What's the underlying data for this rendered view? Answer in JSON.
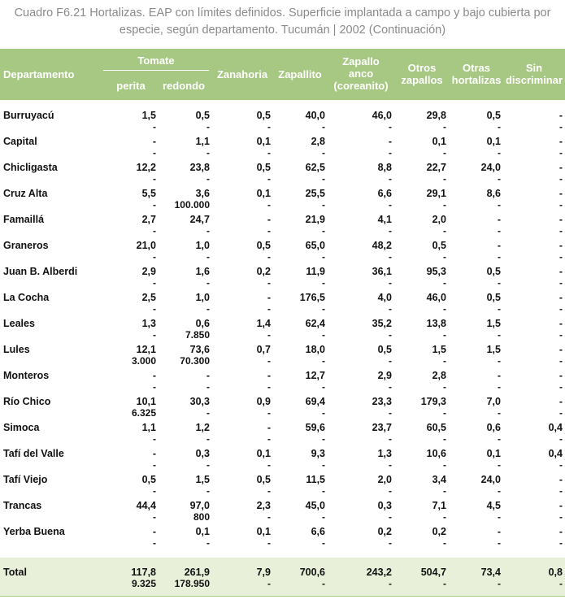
{
  "title": "Cuadro F6.21 Hortalizas. EAP con límites definidos. Superficie implantada a campo y bajo cubierta por especie, según departamento. Tucumán | 2002 (Continuación)",
  "headers": {
    "departamento": "Departamento",
    "tomate": "Tomate",
    "perita": "perita",
    "redondo": "redondo",
    "zanahoria": "Zanahoria",
    "zapallito": "Zapallito",
    "zapallo": "Zapallo anco (coreanito)",
    "otros_zapallos": "Otros zapallos",
    "otras_hortalizas": "Otras hortalizas",
    "sin_discriminar": "Sin discriminar"
  },
  "rows": [
    {
      "dept": "Burruyacú",
      "v": [
        "1,5",
        "0,5",
        "0,5",
        "40,0",
        "46,0",
        "29,8",
        "0,5",
        "-"
      ],
      "s": [
        "-",
        "-",
        "-",
        "-",
        "-",
        "-",
        "-",
        "-"
      ]
    },
    {
      "dept": "Capital",
      "v": [
        "-",
        "1,1",
        "0,1",
        "2,8",
        "-",
        "0,1",
        "0,1",
        "-"
      ],
      "s": [
        "-",
        "-",
        "-",
        "-",
        "-",
        "-",
        "-",
        "-"
      ]
    },
    {
      "dept": "Chicligasta",
      "v": [
        "12,2",
        "23,8",
        "0,5",
        "62,5",
        "8,8",
        "22,7",
        "24,0",
        "-"
      ],
      "s": [
        "-",
        "-",
        "-",
        "-",
        "-",
        "-",
        "-",
        "-"
      ]
    },
    {
      "dept": "Cruz Alta",
      "v": [
        "5,5",
        "3,6",
        "0,1",
        "25,5",
        "6,6",
        "29,1",
        "8,6",
        "-"
      ],
      "s": [
        "-",
        "100.000",
        "-",
        "-",
        "-",
        "-",
        "-",
        "-"
      ]
    },
    {
      "dept": "Famaillá",
      "v": [
        "2,7",
        "24,7",
        "-",
        "21,9",
        "4,1",
        "2,0",
        "-",
        "-"
      ],
      "s": [
        "-",
        "-",
        "-",
        "-",
        "-",
        "-",
        "-",
        "-"
      ]
    },
    {
      "dept": "Graneros",
      "v": [
        "21,0",
        "1,0",
        "0,5",
        "65,0",
        "48,2",
        "0,5",
        "-",
        "-"
      ],
      "s": [
        "-",
        "-",
        "-",
        "-",
        "-",
        "-",
        "-",
        "-"
      ]
    },
    {
      "dept": "Juan B. Alberdi",
      "v": [
        "2,9",
        "1,6",
        "0,2",
        "11,9",
        "36,1",
        "95,3",
        "0,5",
        "-"
      ],
      "s": [
        "-",
        "-",
        "-",
        "-",
        "-",
        "-",
        "-",
        "-"
      ]
    },
    {
      "dept": "La Cocha",
      "v": [
        "2,5",
        "1,0",
        "-",
        "176,5",
        "4,0",
        "46,0",
        "0,5",
        "-"
      ],
      "s": [
        "-",
        "-",
        "-",
        "-",
        "-",
        "-",
        "-",
        "-"
      ]
    },
    {
      "dept": "Leales",
      "v": [
        "1,3",
        "0,6",
        "1,4",
        "62,4",
        "35,2",
        "13,8",
        "1,5",
        "-"
      ],
      "s": [
        "-",
        "7.850",
        "-",
        "-",
        "-",
        "-",
        "-",
        "-"
      ]
    },
    {
      "dept": "Lules",
      "v": [
        "12,1",
        "73,6",
        "0,7",
        "18,0",
        "0,5",
        "1,5",
        "1,5",
        "-"
      ],
      "s": [
        "3.000",
        "70.300",
        "-",
        "-",
        "-",
        "-",
        "-",
        "-"
      ]
    },
    {
      "dept": "Monteros",
      "v": [
        "-",
        "-",
        "-",
        "12,7",
        "2,9",
        "2,8",
        "-",
        "-"
      ],
      "s": [
        "-",
        "-",
        "-",
        "-",
        "-",
        "-",
        "-",
        "-"
      ]
    },
    {
      "dept": "Río Chico",
      "v": [
        "10,1",
        "30,3",
        "0,9",
        "69,4",
        "23,3",
        "179,3",
        "7,0",
        "-"
      ],
      "s": [
        "6.325",
        "-",
        "-",
        "-",
        "-",
        "-",
        "-",
        "-"
      ]
    },
    {
      "dept": "Simoca",
      "v": [
        "1,1",
        "1,2",
        "-",
        "59,6",
        "23,7",
        "60,5",
        "0,6",
        "0,4"
      ],
      "s": [
        "-",
        "-",
        "-",
        "-",
        "-",
        "-",
        "-",
        "-"
      ]
    },
    {
      "dept": "Tafí del Valle",
      "v": [
        "-",
        "0,3",
        "0,1",
        "9,3",
        "1,3",
        "10,6",
        "0,1",
        "0,4"
      ],
      "s": [
        "-",
        "-",
        "-",
        "-",
        "-",
        "-",
        "-",
        "-"
      ]
    },
    {
      "dept": "Tafí Viejo",
      "v": [
        "0,5",
        "1,5",
        "0,5",
        "11,5",
        "2,0",
        "3,4",
        "24,0",
        "-"
      ],
      "s": [
        "-",
        "-",
        "-",
        "-",
        "-",
        "-",
        "-",
        "-"
      ]
    },
    {
      "dept": "Trancas",
      "v": [
        "44,4",
        "97,0",
        "2,3",
        "45,0",
        "0,3",
        "7,1",
        "4,5",
        "-"
      ],
      "s": [
        "-",
        "800",
        "-",
        "-",
        "-",
        "-",
        "-",
        "-"
      ]
    },
    {
      "dept": "Yerba Buena",
      "v": [
        "-",
        "0,1",
        "0,1",
        "6,6",
        "0,2",
        "0,2",
        "-",
        "-"
      ],
      "s": [
        "-",
        "-",
        "-",
        "-",
        "-",
        "-",
        "-",
        "-"
      ]
    }
  ],
  "total": {
    "dept": "Total",
    "v": [
      "117,8",
      "261,9",
      "7,9",
      "700,6",
      "243,2",
      "504,7",
      "73,4",
      "0,8"
    ],
    "s": [
      "9.325",
      "178.950",
      "-",
      "-",
      "-",
      "-",
      "-",
      "-"
    ]
  },
  "colors": {
    "header_bg": "#a7c883",
    "total_bg": "#e8f0da",
    "caption": "#8a8a8a"
  }
}
